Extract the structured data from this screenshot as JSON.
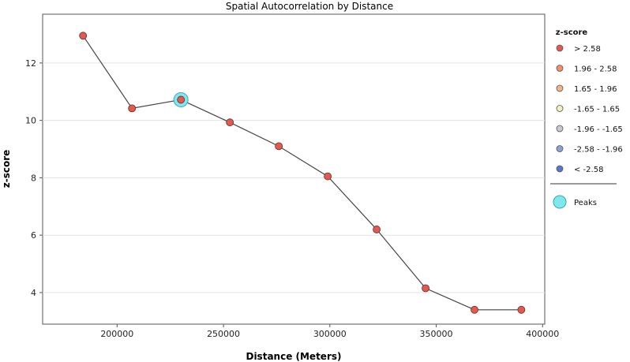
{
  "chart_data": {
    "type": "line",
    "title": "Spatial Autocorrelation by Distance",
    "xlabel": "Distance (Meters)",
    "ylabel": "z-score",
    "xlim": [
      165000,
      401000
    ],
    "ylim": [
      2.9,
      13.7
    ],
    "x_ticks": [
      "200000",
      "250000",
      "300000",
      "350000",
      "400000"
    ],
    "x_tick_values": [
      200000,
      250000,
      300000,
      350000,
      400000
    ],
    "y_ticks": [
      "4",
      "6",
      "8",
      "10",
      "12"
    ],
    "y_tick_values": [
      4,
      6,
      8,
      10,
      12
    ],
    "grid": "horizontal",
    "legend_position": "right",
    "series": [
      {
        "x": [
          184000,
          207000,
          230000,
          253000,
          276000,
          299000,
          322000,
          345000,
          368000,
          390000
        ],
        "y": [
          12.95,
          10.42,
          10.72,
          9.93,
          9.1,
          8.05,
          6.2,
          4.15,
          3.4,
          3.4
        ],
        "point_color": "#e05a50",
        "line_color": "#444444"
      }
    ],
    "peaks": {
      "x": [
        230000
      ],
      "y": [
        10.72
      ],
      "color": "#7fe8ee"
    },
    "legend": {
      "title": "z-score",
      "items": [
        {
          "label": "> 2.58",
          "color": "#e05a50"
        },
        {
          "label": "1.96 - 2.58",
          "color": "#ee8e6e"
        },
        {
          "label": "1.65 - 1.96",
          "color": "#f2b488"
        },
        {
          "label": "-1.65 - 1.65",
          "color": "#f3eec0"
        },
        {
          "label": "-1.96 - -1.65",
          "color": "#c8c8d8"
        },
        {
          "label": "-2.58 - -1.96",
          "color": "#8ea2d2"
        },
        {
          "label": "< -2.58",
          "color": "#5a78c8"
        }
      ],
      "peaks_label": "Peaks"
    }
  }
}
